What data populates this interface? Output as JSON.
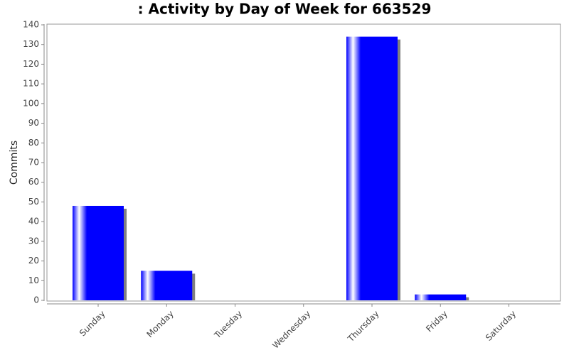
{
  "chart_data": {
    "type": "bar",
    "title": ": Activity by Day of Week for 663529",
    "y_label": "Commits",
    "categories": [
      "Sunday",
      "Monday",
      "Tuesday",
      "Wednesday",
      "Thursday",
      "Friday",
      "Saturday"
    ],
    "values": [
      48,
      15,
      0,
      0,
      134,
      3,
      0
    ],
    "color": "#0000ff",
    "ylim": [
      0,
      140
    ],
    "yticks": [
      0,
      10,
      20,
      30,
      40,
      50,
      60,
      70,
      80,
      90,
      100,
      110,
      120,
      130,
      140
    ],
    "grid": false
  }
}
